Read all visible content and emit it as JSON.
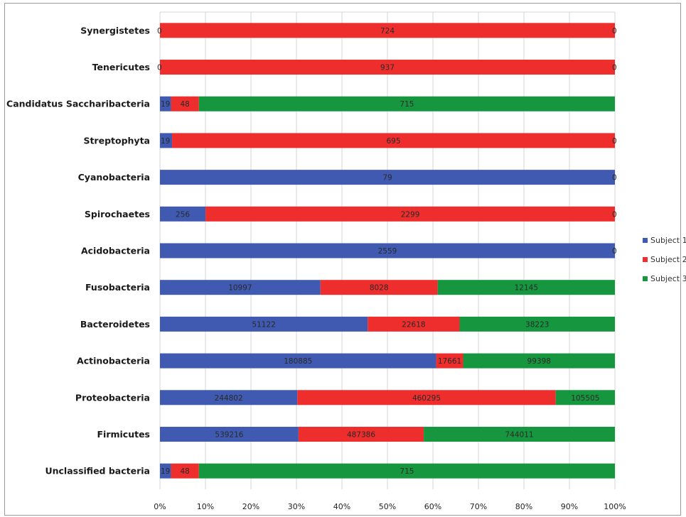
{
  "chart_data": {
    "type": "bar",
    "orientation": "horizontal",
    "stacking": "percent",
    "title": "",
    "xlabel": "",
    "ylabel": "",
    "xlim": [
      0,
      100
    ],
    "x_ticks": [
      "0%",
      "10%",
      "20%",
      "30%",
      "40%",
      "50%",
      "60%",
      "70%",
      "80%",
      "90%",
      "100%"
    ],
    "grid": true,
    "legend_position": "right",
    "categories": [
      "Synergistetes",
      "Tenericutes",
      "Candidatus Saccharibacteria",
      "Streptophyta",
      "Cyanobacteria",
      "Spirochaetes",
      "Acidobacteria",
      "Fusobacteria",
      "Bacteroidetes",
      "Actinobacteria",
      "Proteobacteria",
      "Firmicutes",
      "Unclassified bacteria"
    ],
    "series": [
      {
        "name": "Subject 1",
        "color": "#3f5ab0",
        "values": [
          0,
          0,
          19,
          19,
          79,
          256,
          2559,
          10997,
          51122,
          180885,
          244802,
          539216,
          19
        ]
      },
      {
        "name": "Subject 2",
        "color": "#ee2d2d",
        "values": [
          724,
          937,
          48,
          695,
          0,
          2299,
          0,
          8028,
          22618,
          17661,
          460295,
          487386,
          48
        ]
      },
      {
        "name": "Subject 3",
        "color": "#16963e",
        "values": [
          0,
          0,
          715,
          0,
          0,
          0,
          0,
          12145,
          38223,
          99398,
          105505,
          744011,
          715
        ]
      }
    ],
    "data_labels": [
      [
        "0",
        "724",
        "0"
      ],
      [
        "0",
        "937",
        "0"
      ],
      [
        "19",
        "48",
        "715"
      ],
      [
        "19",
        "695",
        "0"
      ],
      [
        "79",
        "",
        "0"
      ],
      [
        "256",
        "2299",
        "0"
      ],
      [
        "2559",
        "",
        "0"
      ],
      [
        "10997",
        "8028",
        "12145"
      ],
      [
        "51122",
        "22618",
        "38223"
      ],
      [
        "180885",
        "17661",
        "99398"
      ],
      [
        "244802",
        "460295",
        "105505"
      ],
      [
        "539216",
        "487386",
        "744011"
      ],
      [
        "19",
        "48",
        "715"
      ]
    ]
  }
}
